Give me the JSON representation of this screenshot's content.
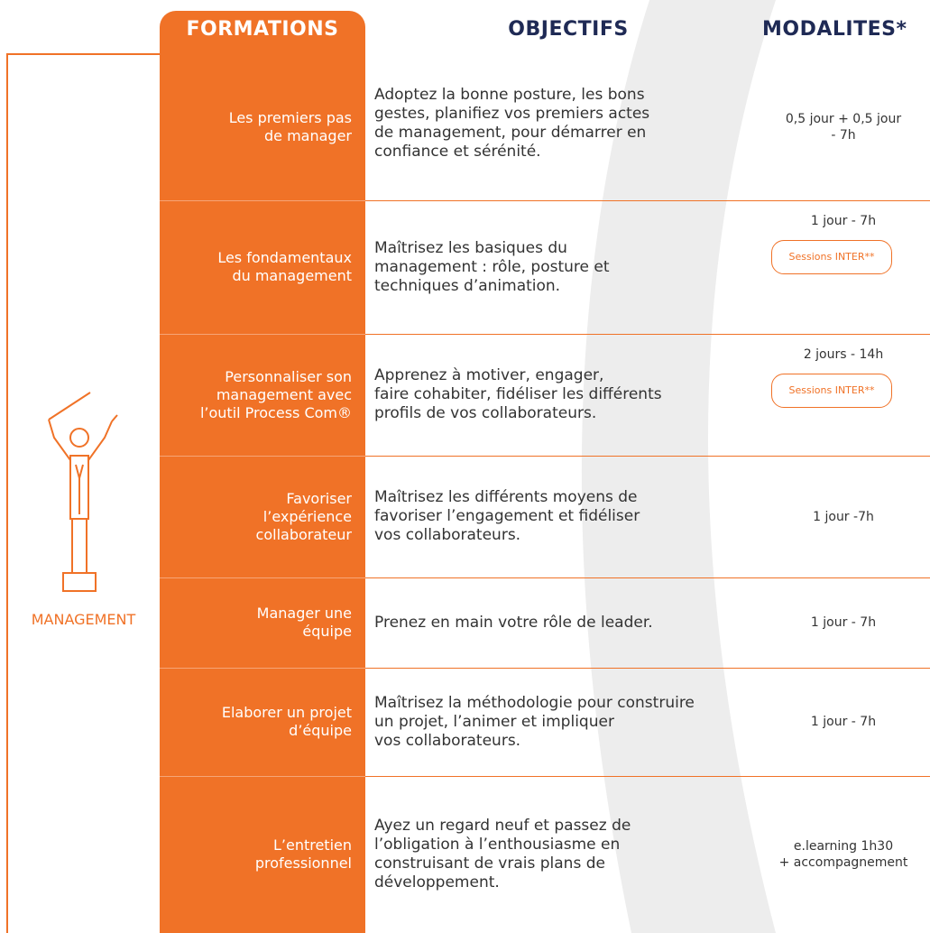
{
  "header": {
    "formations": "FORMATIONS",
    "objectifs": "OBJECTIFS",
    "modalites": "MODALITES*"
  },
  "category": "MANAGEMENT",
  "rows": [
    {
      "formation": [
        "Les premiers pas",
        "de manager"
      ],
      "objectif": [
        "Adoptez la bonne posture, les bons",
        "gestes, planifiez vos premiers actes",
        "de management, pour démarrer en",
        "confiance et sérénité."
      ],
      "modalite": [
        "0,5 jour + 0,5 jour",
        "- 7h"
      ]
    },
    {
      "formation": [
        "Les fondamentaux",
        "du management"
      ],
      "objectif": [
        "Maîtrisez les basiques du",
        "management : rôle, posture et",
        "techniques d’animation."
      ],
      "modalite": [
        "1 jour - 7h"
      ],
      "badge": "Sessions INTER**"
    },
    {
      "formation": [
        "Personnaliser son",
        "management avec",
        "l’outil Process Com®"
      ],
      "objectif": [
        "Apprenez à motiver, engager,",
        "faire cohabiter, fidéliser les différents",
        "profils de vos collaborateurs."
      ],
      "modalite": [
        "2 jours - 14h"
      ],
      "badge": "Sessions INTER**"
    },
    {
      "formation": [
        "Favoriser",
        "l’expérience",
        "collaborateur"
      ],
      "objectif": [
        "Maîtrisez les différents moyens de",
        "favoriser l’engagement et fidéliser",
        "vos collaborateurs."
      ],
      "modalite": [
        "1 jour -7h"
      ]
    },
    {
      "formation": [
        "Manager une",
        "équipe"
      ],
      "objectif": [
        "Prenez en main votre rôle de leader."
      ],
      "modalite": [
        "1 jour - 7h"
      ]
    },
    {
      "formation": [
        "Elaborer un projet",
        "d’équipe"
      ],
      "objectif": [
        "Maîtrisez la méthodologie pour construire",
        "un projet, l’animer et impliquer",
        "vos collaborateurs."
      ],
      "modalite": [
        "1 jour - 7h"
      ]
    },
    {
      "formation": [
        "L’entretien",
        "professionnel"
      ],
      "objectif": [
        "Ayez un regard neuf et passez de",
        "l’obligation à l’enthousiasme en",
        "construisant de vrais plans de",
        "développement."
      ],
      "modalite": [
        "e.learning 1h30",
        "+ accompagnement"
      ]
    }
  ]
}
